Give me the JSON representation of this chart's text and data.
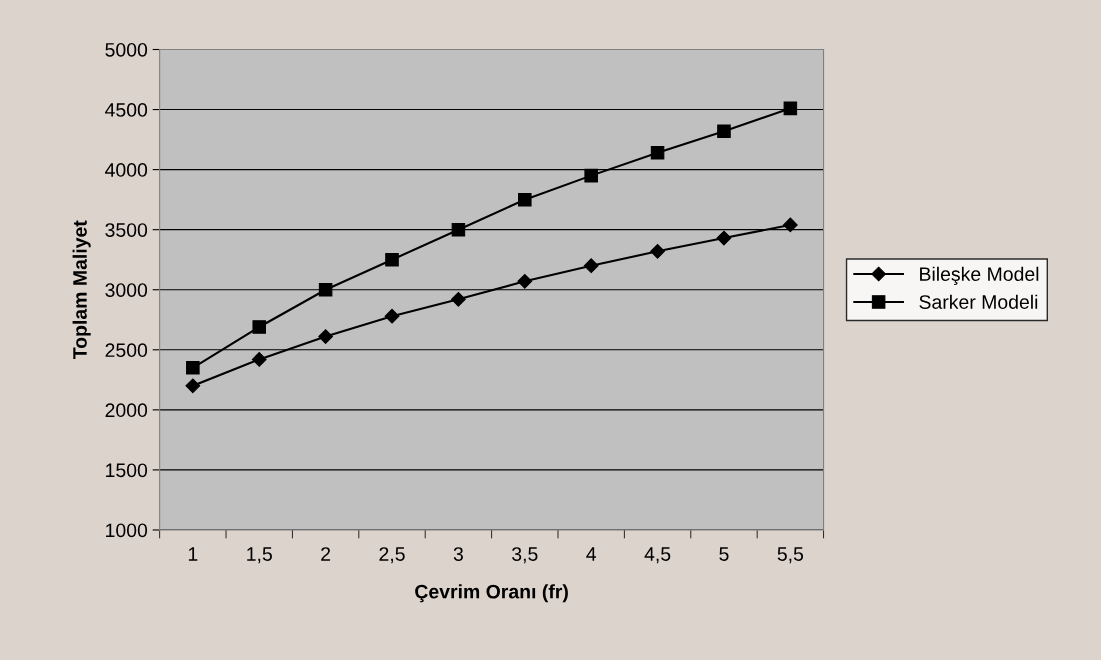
{
  "chart_data": {
    "type": "line",
    "xlabel": "Çevrim Oranı (fr)",
    "ylabel": "Toplam Maliyet",
    "categories": [
      "1",
      "1,5",
      "2",
      "2,5",
      "3",
      "3,5",
      "4",
      "4,5",
      "5",
      "5,5"
    ],
    "series": [
      {
        "name": "Bileşke Model",
        "color": "#000000",
        "marker": "diamond",
        "values": [
          2200,
          2420,
          2610,
          2780,
          2920,
          3070,
          3200,
          3320,
          3430,
          3540
        ]
      },
      {
        "name": "Sarker Modeli",
        "color": "#000000",
        "marker": "square",
        "values": [
          2350,
          2690,
          3000,
          3250,
          3500,
          3750,
          3950,
          4140,
          4320,
          4510
        ]
      }
    ],
    "ylim": [
      1000,
      5000
    ],
    "yticks": [
      1000,
      1500,
      2000,
      2500,
      3000,
      3500,
      4000,
      4500,
      5000
    ],
    "grid": "y",
    "legend": "right",
    "line_style": "solid"
  }
}
